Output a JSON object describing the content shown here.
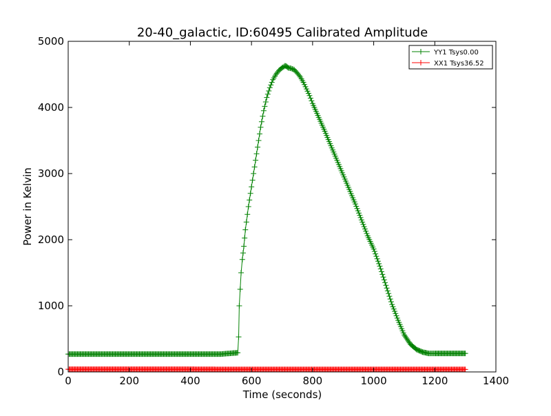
{
  "chart_data": {
    "type": "line",
    "title": "20-40_galactic, ID:60495 Calibrated Amplitude",
    "xlabel": "Time (seconds)",
    "ylabel": "Power in Kelvin",
    "xlim": [
      0,
      1400
    ],
    "ylim": [
      0,
      5000
    ],
    "xticks": [
      "0",
      "200",
      "400",
      "600",
      "800",
      "1000",
      "1200",
      "1400"
    ],
    "yticks": [
      "0",
      "1000",
      "2000",
      "3000",
      "4000",
      "5000"
    ],
    "grid": false,
    "legend_position": "top-right",
    "series": [
      {
        "name": "YY1 Tsys0.00",
        "color": "#008000",
        "marker": "plus",
        "x": [
          0,
          100,
          200,
          300,
          400,
          500,
          540,
          555,
          558,
          560,
          563,
          566,
          570,
          575,
          580,
          590,
          600,
          610,
          620,
          630,
          640,
          650,
          660,
          670,
          680,
          690,
          700,
          710,
          715,
          720,
          730,
          740,
          750,
          760,
          770,
          780,
          790,
          800,
          820,
          840,
          860,
          880,
          900,
          920,
          940,
          960,
          980,
          1000,
          1020,
          1040,
          1060,
          1080,
          1100,
          1120,
          1140,
          1160,
          1180,
          1190,
          1200,
          1250,
          1300
        ],
        "y": [
          270,
          270,
          270,
          270,
          270,
          270,
          285,
          290,
          530,
          1000,
          1250,
          1500,
          1700,
          1900,
          2150,
          2500,
          2800,
          3100,
          3400,
          3700,
          3950,
          4150,
          4300,
          4420,
          4500,
          4560,
          4600,
          4630,
          4620,
          4600,
          4590,
          4570,
          4520,
          4460,
          4380,
          4280,
          4180,
          4060,
          3850,
          3640,
          3420,
          3200,
          2980,
          2760,
          2540,
          2300,
          2060,
          1860,
          1600,
          1310,
          1020,
          780,
          560,
          420,
          340,
          300,
          280,
          280,
          280,
          280,
          280
        ]
      },
      {
        "name": "XX1 Tsys36.52",
        "color": "#ff0000",
        "marker": "plus",
        "x": [
          0,
          100,
          200,
          300,
          400,
          500,
          600,
          700,
          800,
          900,
          1000,
          1100,
          1200,
          1300
        ],
        "y": [
          40,
          40,
          40,
          40,
          40,
          38,
          38,
          38,
          38,
          38,
          38,
          38,
          38,
          38
        ]
      }
    ]
  }
}
